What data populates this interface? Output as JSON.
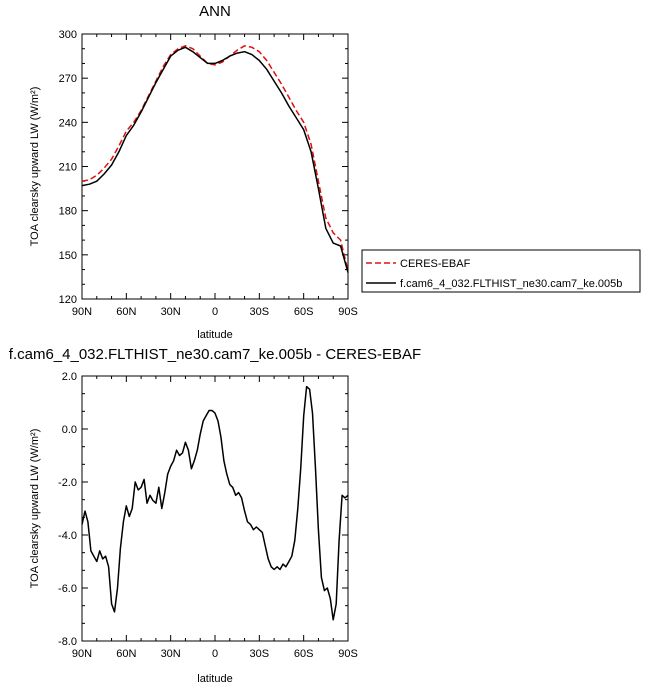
{
  "chart_data": [
    {
      "type": "line",
      "title": "ANN",
      "xlabel": "latitude",
      "ylabel": "TOA clearsky upward LW (W/m²)",
      "xlim": [
        90,
        -90
      ],
      "ylim": [
        120,
        300
      ],
      "xticks": [
        90,
        60,
        30,
        0,
        -30,
        -60,
        -90
      ],
      "xtick_labels": [
        "90N",
        "60N",
        "30N",
        "0",
        "30S",
        "60S",
        "90S"
      ],
      "yticks": [
        120,
        150,
        180,
        210,
        240,
        270,
        300
      ],
      "ytick_labels": [
        "120",
        "150",
        "180",
        "210",
        "240",
        "270",
        "300"
      ],
      "legend": {
        "position": "right",
        "entries": [
          "CERES-EBAF",
          "f.cam6_4_032.FLTHIST_ne30.cam7_ke.005b"
        ]
      },
      "series": [
        {
          "name": "CERES-EBAF",
          "color": "#e01010",
          "dash": "dashed",
          "x": [
            90,
            85,
            80,
            75,
            70,
            65,
            60,
            55,
            50,
            45,
            40,
            35,
            30,
            25,
            20,
            15,
            10,
            5,
            0,
            -5,
            -10,
            -15,
            -20,
            -25,
            -30,
            -35,
            -40,
            -45,
            -50,
            -55,
            -60,
            -65,
            -70,
            -75,
            -80,
            -85,
            -90
          ],
          "values": [
            200,
            201,
            204,
            209,
            215,
            224,
            234,
            240,
            248,
            258,
            268,
            278,
            286,
            290,
            292,
            290,
            285,
            280,
            279,
            281,
            285,
            289,
            292,
            291,
            288,
            282,
            274,
            266,
            257,
            248,
            240,
            225,
            200,
            175,
            165,
            160,
            139
          ]
        },
        {
          "name": "f.cam6_4_032.FLTHIST_ne30.cam7_ke.005b",
          "color": "#000000",
          "dash": "solid",
          "x": [
            90,
            85,
            80,
            75,
            70,
            65,
            60,
            55,
            50,
            45,
            40,
            35,
            30,
            25,
            20,
            15,
            10,
            5,
            0,
            -5,
            -10,
            -15,
            -20,
            -25,
            -30,
            -35,
            -40,
            -45,
            -50,
            -55,
            -60,
            -65,
            -70,
            -75,
            -80,
            -85,
            -90
          ],
          "values": [
            197,
            198,
            200,
            205,
            211,
            220,
            231,
            238,
            247,
            257,
            267,
            276,
            285,
            289,
            291,
            288,
            284,
            280,
            280,
            282,
            285,
            287,
            288,
            286,
            282,
            276,
            268,
            260,
            251,
            243,
            235,
            220,
            195,
            168,
            158,
            156,
            138
          ]
        }
      ]
    },
    {
      "type": "line",
      "title": "f.cam6_4_032.FLTHIST_ne30.cam7_ke.005b - CERES-EBAF",
      "xlabel": "latitude",
      "ylabel": "TOA clearsky upward LW (W/m²)",
      "xlim": [
        90,
        -90
      ],
      "ylim": [
        -8,
        2
      ],
      "xticks": [
        90,
        60,
        30,
        0,
        -30,
        -60,
        -90
      ],
      "xtick_labels": [
        "90N",
        "60N",
        "30N",
        "0",
        "30S",
        "60S",
        "90S"
      ],
      "yticks": [
        -8,
        -6,
        -4,
        -2,
        0,
        2
      ],
      "ytick_labels": [
        "-8.0",
        "-6.0",
        "-4.0",
        "-2.0",
        "0.0",
        "2.0"
      ],
      "series": [
        {
          "color": "#000000",
          "x": [
            90,
            88,
            86,
            84,
            82,
            80,
            78,
            76,
            74,
            72,
            70,
            68,
            66,
            64,
            62,
            60,
            58,
            56,
            54,
            52,
            50,
            48,
            46,
            44,
            42,
            40,
            38,
            36,
            34,
            32,
            30,
            28,
            26,
            24,
            22,
            20,
            18,
            16,
            14,
            12,
            10,
            8,
            6,
            4,
            2,
            0,
            -2,
            -4,
            -6,
            -8,
            -10,
            -12,
            -14,
            -16,
            -18,
            -20,
            -22,
            -24,
            -26,
            -28,
            -30,
            -32,
            -34,
            -36,
            -38,
            -40,
            -42,
            -44,
            -46,
            -48,
            -50,
            -52,
            -54,
            -56,
            -58,
            -60,
            -62,
            -64,
            -66,
            -68,
            -70,
            -72,
            -74,
            -76,
            -78,
            -80,
            -82,
            -84,
            -86,
            -88,
            -90
          ],
          "values": [
            -3.6,
            -3.1,
            -3.5,
            -4.6,
            -4.8,
            -5.0,
            -4.6,
            -4.9,
            -4.8,
            -5.2,
            -6.6,
            -6.9,
            -6.0,
            -4.5,
            -3.5,
            -2.9,
            -3.3,
            -3.0,
            -2.0,
            -2.3,
            -2.2,
            -1.9,
            -2.8,
            -2.5,
            -2.7,
            -2.8,
            -2.2,
            -3.0,
            -2.4,
            -1.7,
            -1.4,
            -1.2,
            -0.8,
            -1.0,
            -0.9,
            -0.5,
            -0.8,
            -1.5,
            -1.2,
            -0.8,
            -0.2,
            0.3,
            0.5,
            0.7,
            0.7,
            0.6,
            0.3,
            -0.3,
            -1.2,
            -1.7,
            -2.1,
            -2.2,
            -2.5,
            -2.4,
            -2.6,
            -3.1,
            -3.5,
            -3.6,
            -3.8,
            -3.7,
            -3.8,
            -3.9,
            -4.4,
            -4.9,
            -5.2,
            -5.3,
            -5.2,
            -5.3,
            -5.1,
            -5.2,
            -5.0,
            -4.8,
            -4.2,
            -3.0,
            -1.5,
            0.5,
            1.6,
            1.5,
            0.6,
            -1.5,
            -3.8,
            -5.6,
            -6.1,
            -6.0,
            -6.4,
            -7.2,
            -6.6,
            -4.2,
            -2.5,
            -2.6,
            -2.5
          ]
        }
      ]
    }
  ]
}
